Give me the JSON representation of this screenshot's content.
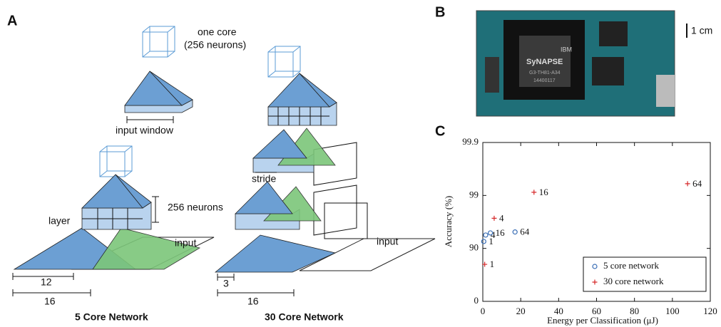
{
  "panels": {
    "a": "A",
    "b": "B",
    "c": "C"
  },
  "diagram": {
    "core_label": "one core",
    "core_sublabel": "(256 neurons)",
    "input_window": "input window",
    "neurons": "256 neurons",
    "layer": "layer",
    "stride": "stride",
    "input_left": "input",
    "input_right": "input",
    "dim_12": "12",
    "dim_16_left": "16",
    "dim_3": "3",
    "dim_16_right": "16",
    "caption_left": "5 Core Network",
    "caption_right": "30 Core Network"
  },
  "photo": {
    "chip_brand": "IBM",
    "chip_name": "SyNAPSE",
    "chip_code": "G3-TH81-A34",
    "chip_serial": "14400117",
    "scale": "1 cm"
  },
  "chart_data": {
    "type": "scatter",
    "xlabel": "Energy per Classification (μJ)",
    "ylabel": "Accuracy (%)",
    "xlim": [
      0,
      120
    ],
    "xticks": [
      0,
      20,
      40,
      60,
      80,
      100,
      120
    ],
    "ylim": [
      0,
      99.9
    ],
    "yticks": [
      0,
      90,
      99,
      99.9
    ],
    "yscale": "log_error",
    "legend": "lower right",
    "series": [
      {
        "name": "5 core network",
        "color": "#3b6fb6",
        "marker": "o",
        "x": [
          0.5,
          1.5,
          4,
          17
        ],
        "values": [
          92.6,
          94.4,
          94.9,
          95.1
        ],
        "labels": [
          "1",
          "4",
          "16",
          "64"
        ]
      },
      {
        "name": "30 core network",
        "color": "#d62728",
        "marker": "+",
        "x": [
          1,
          6,
          27,
          108
        ],
        "values": [
          80,
          97.3,
          99.13,
          99.4
        ],
        "labels": [
          "1",
          "4",
          "16",
          "64"
        ]
      }
    ]
  }
}
